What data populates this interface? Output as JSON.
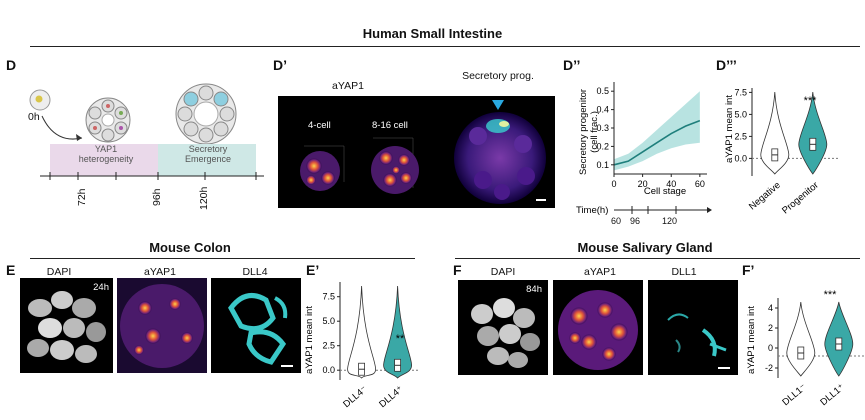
{
  "titles": {
    "main": "Human Small Intestine",
    "colon": "Mouse Colon",
    "salivary": "Mouse Salivary Gland"
  },
  "panels": {
    "D": "D",
    "D1": "D’",
    "D2": "D’’",
    "D3": "D’’’",
    "E": "E",
    "E1": "E’",
    "F": "F",
    "F1": "F’"
  },
  "panelD": {
    "start_label": "0h",
    "band1_label": "YAP1\nheterogeneity",
    "band2_label": "Secretory\nEmergence",
    "timepoints": [
      "72h",
      "96h",
      "120h"
    ]
  },
  "panelD1": {
    "channel": "aYAP1",
    "label_4cell": "4-cell",
    "label_816cell": "8-16 cell",
    "secretory_label": "Secretory prog."
  },
  "panelD2": {
    "ylabel_line1": "Secretory progenitor",
    "ylabel_line2": "(cell frac.)",
    "xlabel": "Cell stage",
    "time_label": "Time(h)",
    "time_ticks": [
      "60",
      "96",
      "120"
    ]
  },
  "panelD3": {
    "ylabel": "aYAP1 mean int",
    "significance": "***"
  },
  "panelE": {
    "labels": [
      "DAPI",
      "aYAP1",
      "DLL4"
    ],
    "time": "24h"
  },
  "panelE1": {
    "ylabel": "aYAP1 mean int",
    "significance": "**"
  },
  "panelF": {
    "labels": [
      "DAPI",
      "aYAP1",
      "DLL1"
    ],
    "time": "84h"
  },
  "panelF1": {
    "ylabel": "aYAP1 mean int",
    "significance": "***"
  },
  "colors": {
    "teal": "#3aa8a6",
    "pink": "#ead9ea",
    "mint": "#cfe8e6"
  },
  "chart_data": [
    {
      "type": "line",
      "x": [
        0,
        10,
        20,
        30,
        40,
        50,
        60
      ],
      "series": [
        {
          "values": [
            0.1,
            0.12,
            0.17,
            0.22,
            0.27,
            0.31,
            0.34
          ]
        }
      ],
      "band_upper": [
        0.13,
        0.16,
        0.22,
        0.29,
        0.36,
        0.43,
        0.5
      ],
      "band_lower": [
        0.07,
        0.09,
        0.12,
        0.16,
        0.19,
        0.21,
        0.22
      ],
      "xlabel": "Cell stage",
      "ylabel": "Secretory progenitor (cell frac.)",
      "xticks": [
        "0",
        "20",
        "40",
        "60"
      ],
      "yticks": [
        "0.1",
        "0.2",
        "0.3",
        "0.4",
        "0.5"
      ],
      "xlim": [
        0,
        65
      ],
      "ylim": [
        0.05,
        0.55
      ]
    },
    {
      "type": "violin",
      "categories": [
        "Negative",
        "Progenitor"
      ],
      "yticks": [
        "0.0",
        "2.5",
        "5.0",
        "7.5"
      ],
      "ylim": [
        -2,
        8
      ],
      "ylabel": "aYAP1 mean int",
      "medians": [
        0.4,
        1.6
      ]
    },
    {
      "type": "violin",
      "categories": [
        "DLL4⁻",
        "DLL4⁺"
      ],
      "yticks": [
        "0.0",
        "2.5",
        "5.0",
        "7.5"
      ],
      "ylim": [
        -1,
        9
      ],
      "ylabel": "aYAP1 mean int",
      "medians": [
        0.1,
        0.5
      ]
    },
    {
      "type": "violin",
      "categories": [
        "DLL1⁻",
        "DLL1⁺"
      ],
      "yticks": [
        "-2",
        "0",
        "2",
        "4"
      ],
      "ylim": [
        -3,
        5
      ],
      "ylabel": "aYAP1 mean int",
      "medians": [
        -0.5,
        0.4
      ]
    }
  ]
}
